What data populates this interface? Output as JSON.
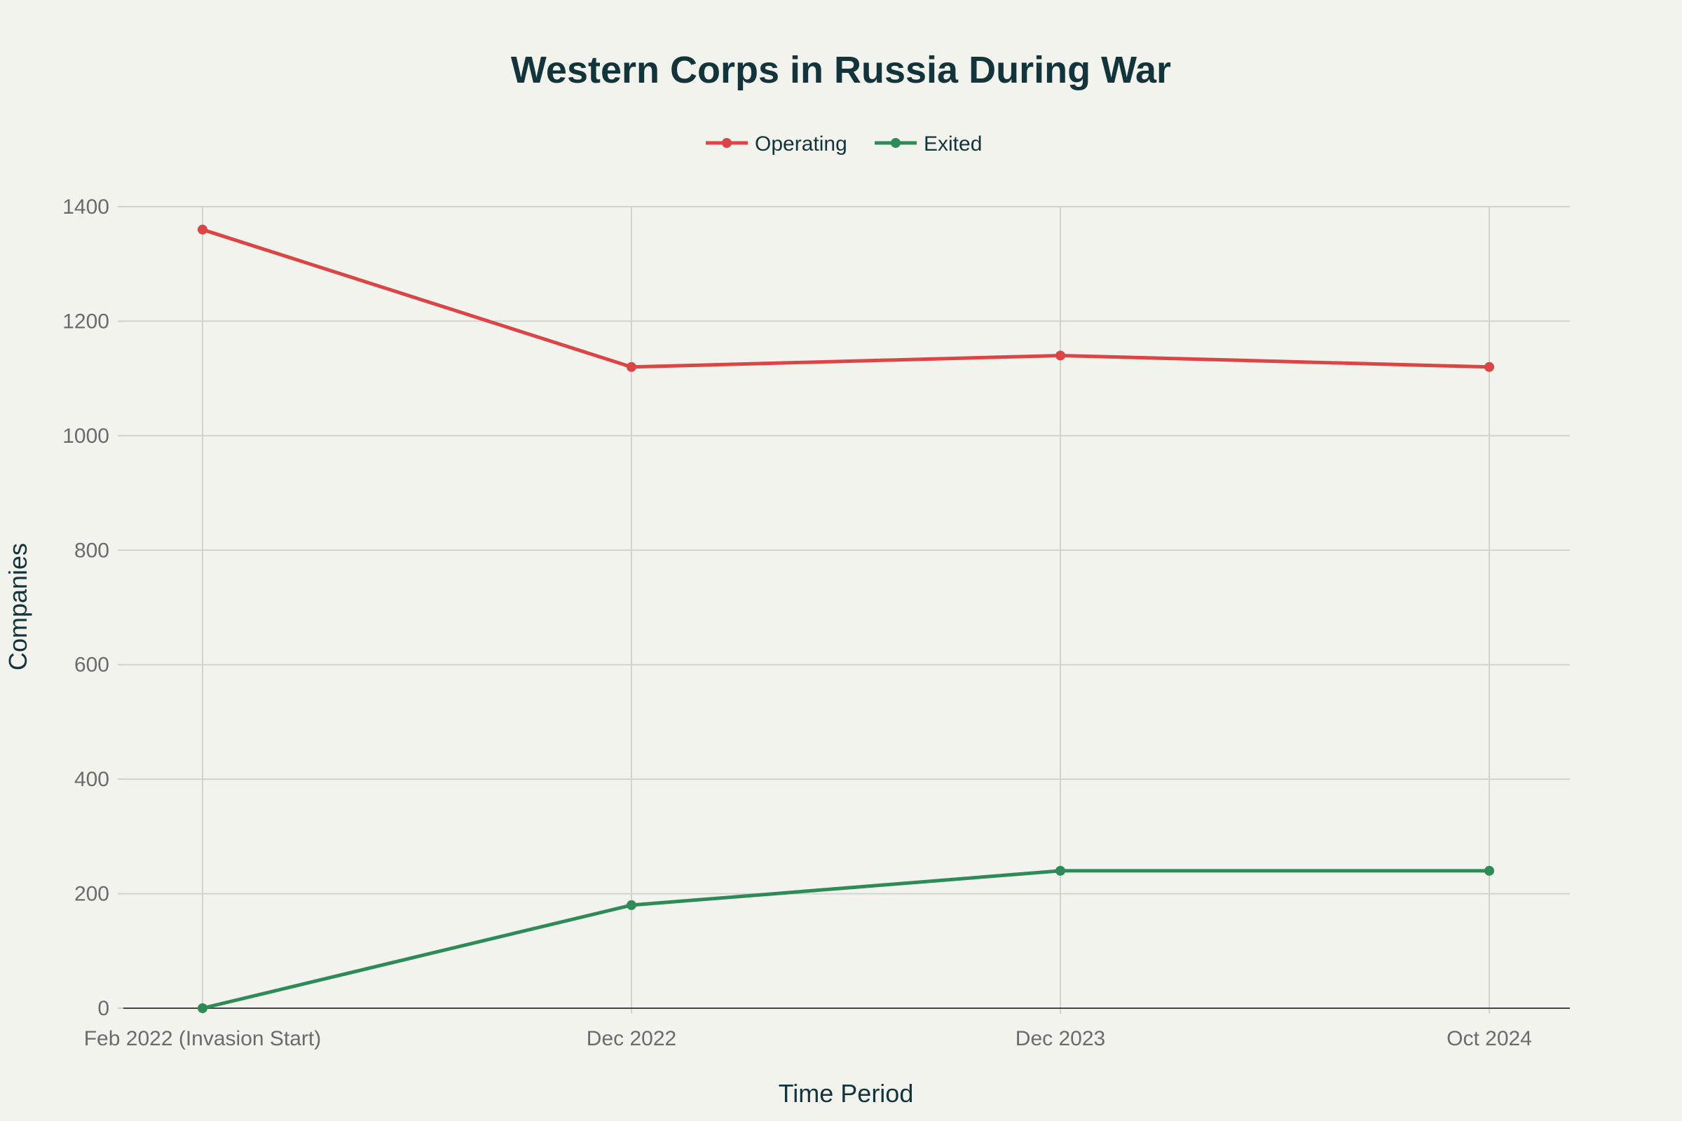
{
  "chart_data": {
    "type": "line",
    "title": "Western Corps in Russia During War",
    "xlabel": "Time Period",
    "ylabel": "Companies",
    "categories": [
      "Feb 2022 (Invasion Start)",
      "Dec 2022",
      "Dec 2023",
      "Oct 2024"
    ],
    "series": [
      {
        "name": "Operating",
        "color": "#db4545",
        "values": [
          1360,
          1120,
          1140,
          1120
        ]
      },
      {
        "name": "Exited",
        "color": "#2e8b57",
        "values": [
          0,
          180,
          240,
          240
        ]
      }
    ],
    "ylim": [
      0,
      1400
    ],
    "yticks": [
      "0",
      "200",
      "400",
      "600",
      "800",
      "1000",
      "1200",
      "1400"
    ],
    "grid": true,
    "legend_placement": "top-center"
  }
}
